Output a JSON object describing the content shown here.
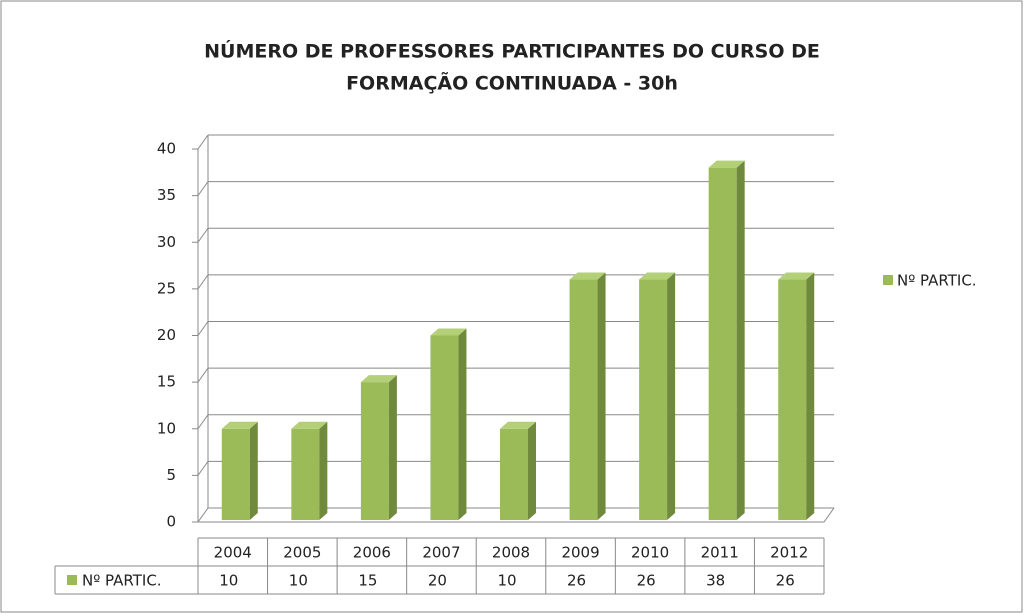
{
  "chart_data": {
    "type": "bar3d",
    "title": [
      "NÚMERO DE PROFESSORES PARTICIPANTES DO CURSO DE",
      "FORMAÇÃO CONTINUADA - 30h"
    ],
    "categories": [
      "2004",
      "2005",
      "2006",
      "2007",
      "2008",
      "2009",
      "2010",
      "2011",
      "2012"
    ],
    "series": [
      {
        "name": "Nº PARTIC.",
        "color": "#9bbb59",
        "values": [
          10,
          10,
          15,
          20,
          10,
          26,
          26,
          38,
          26
        ]
      }
    ],
    "ylim": [
      0,
      40
    ],
    "yticks": [
      0,
      5,
      10,
      15,
      20,
      25,
      30,
      35,
      40
    ],
    "grid": true,
    "legend": "right",
    "data_table": true
  }
}
